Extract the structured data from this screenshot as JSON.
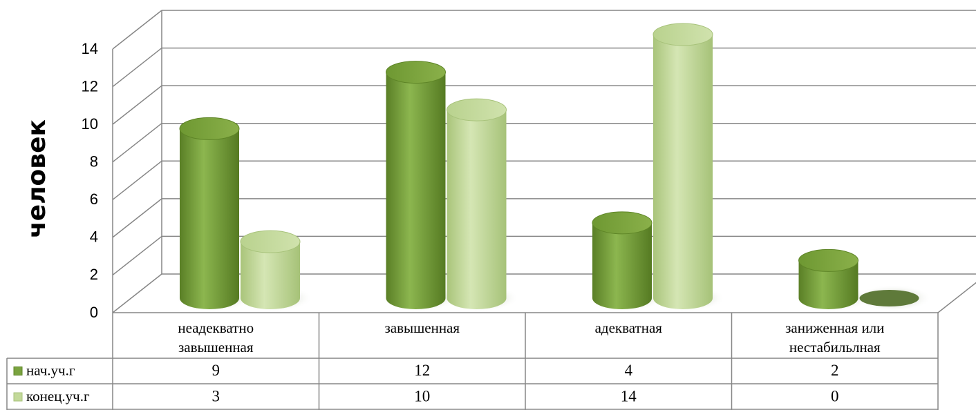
{
  "chart_data": {
    "type": "bar",
    "ylabel": "человек",
    "ylim": [
      0,
      14
    ],
    "yticks": [
      "0",
      "2",
      "4",
      "6",
      "8",
      "10",
      "12",
      "14"
    ],
    "categories": [
      [
        "неадекватно",
        "завышенная"
      ],
      [
        "завышенная"
      ],
      [
        "адекватная"
      ],
      [
        "заниженная или",
        "нестабильлная"
      ]
    ],
    "series": [
      {
        "name": "нач.уч.г",
        "values": [
          9,
          12,
          4,
          2
        ],
        "color": "#7aa33f"
      },
      {
        "name": "конец.уч.г",
        "values": [
          3,
          10,
          14,
          0
        ],
        "color": "#c3d99a"
      }
    ],
    "grid": true,
    "legend": "data-table"
  }
}
